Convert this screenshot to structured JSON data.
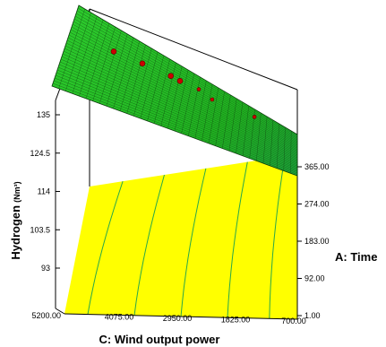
{
  "chart_data": {
    "type": "surface-3d",
    "title": "",
    "zlabel": {
      "name": "Hydrogen",
      "unit": "(Nm³)"
    },
    "xlabel": "C: Wind output power",
    "ylabel": "A: Time",
    "z_ticks": [
      "93",
      "103.5",
      "114",
      "124.5",
      "135"
    ],
    "x_ticks": [
      "5200.00",
      "4075.00",
      "2950.00",
      "1825.00",
      "700.00"
    ],
    "y_ticks": [
      "1.00",
      "92.00",
      "183.00",
      "274.00",
      "365.00"
    ],
    "x_values": [
      5200,
      4075,
      2950,
      1825,
      700
    ],
    "y_values": [
      1,
      92,
      183,
      274,
      365
    ],
    "z_range": [
      93,
      135
    ],
    "colors": {
      "surface": "#22b722",
      "surface_high": "#2ecc2e",
      "surface_low": "#1fa83d",
      "mesh": "#0a3a0a",
      "contour_floor": "#ffff00",
      "contour_line": "#2aa84a",
      "design_point": "#cc0000"
    },
    "design_points": [
      {
        "c": 2300,
        "a": 20,
        "z": 122
      },
      {
        "c": 2000,
        "a": 80,
        "z": 121
      },
      {
        "c": 1720,
        "a": 140,
        "z": 120
      },
      {
        "c": 1720,
        "a": 160,
        "z": 118
      },
      {
        "c": 1500,
        "a": 200,
        "z": 117
      },
      {
        "c": 1900,
        "a": 230,
        "z": 113
      },
      {
        "c": 1100,
        "a": 320,
        "z": 112
      }
    ]
  }
}
